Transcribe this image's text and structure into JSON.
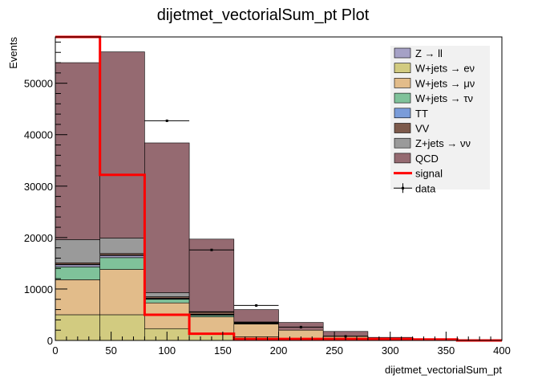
{
  "chart_data": {
    "type": "bar",
    "title": "dijetmet_vectorialSum_pt Plot",
    "xlabel": "dijetmet_vectorialSum_pt",
    "ylabel": "Events",
    "xlim": [
      0,
      400
    ],
    "ylim": [
      0,
      59000
    ],
    "x_ticks": [
      "0",
      "50",
      "100",
      "150",
      "200",
      "250",
      "300",
      "350",
      "400"
    ],
    "y_ticks": [
      "0",
      "10000",
      "20000",
      "30000",
      "40000",
      "50000"
    ],
    "bin_edges": [
      0,
      40,
      80,
      120,
      160,
      200,
      240,
      280,
      320,
      360,
      400
    ],
    "stack_order": "bottom-to-top",
    "series": [
      {
        "name": "W+jets → eν",
        "color": "#d2cb80",
        "values": [
          5000,
          5000,
          2300,
          1200,
          700,
          300,
          150,
          50,
          0,
          0
        ]
      },
      {
        "name": "W+jets → μν",
        "color": "#e2bc8a",
        "values": [
          6800,
          8800,
          5000,
          3400,
          2500,
          1700,
          700,
          250,
          0,
          0
        ]
      },
      {
        "name": "W+jets → τν",
        "color": "#7fc29a",
        "values": [
          2500,
          2300,
          700,
          300,
          100,
          0,
          0,
          0,
          0,
          0
        ]
      },
      {
        "name": "Z → ll",
        "color": "#a5a1c6",
        "values": [
          400,
          400,
          100,
          100,
          50,
          0,
          0,
          0,
          0,
          0
        ]
      },
      {
        "name": "TT",
        "color": "#7a9cd9",
        "values": [
          100,
          100,
          100,
          100,
          50,
          0,
          0,
          0,
          0,
          0
        ]
      },
      {
        "name": "VV",
        "color": "#7d5a4b",
        "values": [
          300,
          300,
          300,
          400,
          100,
          0,
          0,
          0,
          0,
          0
        ]
      },
      {
        "name": "Z+jets → νν",
        "color": "#9a9a9a",
        "values": [
          4500,
          3000,
          800,
          100,
          100,
          0,
          0,
          0,
          0,
          0
        ]
      },
      {
        "name": "QCD",
        "color": "#956a71",
        "values": [
          34400,
          36200,
          29100,
          14100,
          2400,
          1500,
          900,
          300,
          100,
          0
        ]
      }
    ],
    "signal": {
      "name": "signal",
      "color": "#ff0000",
      "values": [
        59000,
        32200,
        5000,
        1300,
        300,
        300,
        300,
        300,
        200,
        0
      ]
    },
    "data": {
      "name": "data",
      "x": [
        100,
        140,
        180,
        220,
        260
      ],
      "y": [
        42700,
        17600,
        6800,
        2600,
        800
      ],
      "xerr": 20
    },
    "legend": {
      "placement": "top-right",
      "entries": [
        {
          "label": "Z → ll",
          "kind": "box",
          "color": "#a5a1c6"
        },
        {
          "label": "W+jets → eν",
          "kind": "box",
          "color": "#d2cb80"
        },
        {
          "label": "W+jets → μν",
          "kind": "box",
          "color": "#e2bc8a"
        },
        {
          "label": "W+jets → τν",
          "kind": "box",
          "color": "#7fc29a"
        },
        {
          "label": "TT",
          "kind": "box",
          "color": "#7a9cd9"
        },
        {
          "label": "VV",
          "kind": "box",
          "color": "#7d5a4b"
        },
        {
          "label": "Z+jets → νν",
          "kind": "box",
          "color": "#9a9a9a"
        },
        {
          "label": "QCD",
          "kind": "box",
          "color": "#956a71"
        },
        {
          "label": "signal",
          "kind": "line",
          "color": "#ff0000"
        },
        {
          "label": "data",
          "kind": "marker",
          "color": "#000000"
        }
      ]
    },
    "grid": false
  }
}
